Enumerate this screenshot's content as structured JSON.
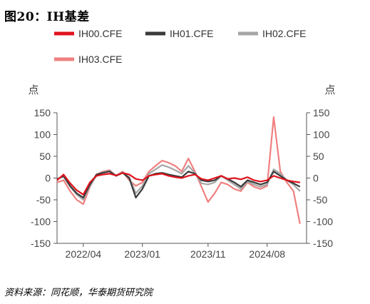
{
  "header": {
    "title": "图20：IH基差"
  },
  "footer": {
    "source": "资料来源：同花顺，华泰期货研究院"
  },
  "chart_data": {
    "type": "line",
    "title": "IH基差",
    "y_unit_left": "点",
    "y_unit_right": "点",
    "ylim": [
      -150,
      150
    ],
    "y_ticks": [
      150,
      100,
      50,
      0,
      -50,
      -100,
      -150
    ],
    "xlim": [
      "2021-12",
      "2025-02"
    ],
    "x_ticks": [
      "2022/04",
      "2023/01",
      "2023/11",
      "2024/08"
    ],
    "legend_position": "top",
    "grid": false,
    "series": [
      {
        "name": "IH00.CFE",
        "color": "#e0131d",
        "width": 2.2,
        "points": [
          [
            "2021-12",
            -5
          ],
          [
            "2022-01",
            8
          ],
          [
            "2022-02",
            -12
          ],
          [
            "2022-03",
            -28
          ],
          [
            "2022-04",
            -38
          ],
          [
            "2022-05",
            -10
          ],
          [
            "2022-06",
            5
          ],
          [
            "2022-07",
            8
          ],
          [
            "2022-08",
            10
          ],
          [
            "2022-09",
            6
          ],
          [
            "2022-10",
            12
          ],
          [
            "2022-11",
            8
          ],
          [
            "2022-12",
            -2
          ],
          [
            "2023-01",
            -5
          ],
          [
            "2023-02",
            5
          ],
          [
            "2023-03",
            8
          ],
          [
            "2023-04",
            10
          ],
          [
            "2023-05",
            5
          ],
          [
            "2023-06",
            2
          ],
          [
            "2023-07",
            0
          ],
          [
            "2023-08",
            5
          ],
          [
            "2023-09",
            8
          ],
          [
            "2023-10",
            -2
          ],
          [
            "2023-11",
            -5
          ],
          [
            "2023-12",
            0
          ],
          [
            "2024-01",
            5
          ],
          [
            "2024-02",
            -2
          ],
          [
            "2024-03",
            0
          ],
          [
            "2024-04",
            -3
          ],
          [
            "2024-05",
            2
          ],
          [
            "2024-06",
            -5
          ],
          [
            "2024-07",
            -8
          ],
          [
            "2024-08",
            -5
          ],
          [
            "2024-09",
            5
          ],
          [
            "2024-10",
            0
          ],
          [
            "2024-11",
            -5
          ],
          [
            "2024-12",
            -8
          ],
          [
            "2025-01",
            -10
          ]
        ]
      },
      {
        "name": "IH01.CFE",
        "color": "#3a3a3a",
        "width": 2.2,
        "points": [
          [
            "2021-12",
            -3
          ],
          [
            "2022-01",
            5
          ],
          [
            "2022-02",
            -18
          ],
          [
            "2022-03",
            -35
          ],
          [
            "2022-04",
            -45
          ],
          [
            "2022-05",
            -15
          ],
          [
            "2022-06",
            8
          ],
          [
            "2022-07",
            12
          ],
          [
            "2022-08",
            15
          ],
          [
            "2022-09",
            5
          ],
          [
            "2022-10",
            12
          ],
          [
            "2022-11",
            0
          ],
          [
            "2022-12",
            -45
          ],
          [
            "2023-01",
            -25
          ],
          [
            "2023-02",
            5
          ],
          [
            "2023-03",
            10
          ],
          [
            "2023-04",
            12
          ],
          [
            "2023-05",
            8
          ],
          [
            "2023-06",
            5
          ],
          [
            "2023-07",
            2
          ],
          [
            "2023-08",
            15
          ],
          [
            "2023-09",
            10
          ],
          [
            "2023-10",
            -5
          ],
          [
            "2023-11",
            -8
          ],
          [
            "2023-12",
            -5
          ],
          [
            "2024-01",
            5
          ],
          [
            "2024-02",
            -2
          ],
          [
            "2024-03",
            -10
          ],
          [
            "2024-04",
            -20
          ],
          [
            "2024-05",
            -5
          ],
          [
            "2024-06",
            -10
          ],
          [
            "2024-07",
            -15
          ],
          [
            "2024-08",
            -10
          ],
          [
            "2024-09",
            15
          ],
          [
            "2024-10",
            5
          ],
          [
            "2024-11",
            -5
          ],
          [
            "2024-12",
            -12
          ],
          [
            "2025-01",
            -20
          ]
        ]
      },
      {
        "name": "IH02.CFE",
        "color": "#a6a6a6",
        "width": 2.2,
        "points": [
          [
            "2021-12",
            -2
          ],
          [
            "2022-01",
            3
          ],
          [
            "2022-02",
            -20
          ],
          [
            "2022-03",
            -38
          ],
          [
            "2022-04",
            -50
          ],
          [
            "2022-05",
            -18
          ],
          [
            "2022-06",
            5
          ],
          [
            "2022-07",
            14
          ],
          [
            "2022-08",
            16
          ],
          [
            "2022-09",
            6
          ],
          [
            "2022-10",
            14
          ],
          [
            "2022-11",
            2
          ],
          [
            "2022-12",
            -35
          ],
          [
            "2023-01",
            -18
          ],
          [
            "2023-02",
            10
          ],
          [
            "2023-03",
            20
          ],
          [
            "2023-04",
            30
          ],
          [
            "2023-05",
            25
          ],
          [
            "2023-06",
            18
          ],
          [
            "2023-07",
            10
          ],
          [
            "2023-08",
            28
          ],
          [
            "2023-09",
            12
          ],
          [
            "2023-10",
            -12
          ],
          [
            "2023-11",
            -15
          ],
          [
            "2023-12",
            -10
          ],
          [
            "2024-01",
            5
          ],
          [
            "2024-02",
            -5
          ],
          [
            "2024-03",
            -15
          ],
          [
            "2024-04",
            -25
          ],
          [
            "2024-05",
            -8
          ],
          [
            "2024-06",
            -15
          ],
          [
            "2024-07",
            -20
          ],
          [
            "2024-08",
            -15
          ],
          [
            "2024-09",
            20
          ],
          [
            "2024-10",
            10
          ],
          [
            "2024-11",
            -5
          ],
          [
            "2024-12",
            -15
          ],
          [
            "2025-01",
            -30
          ]
        ]
      },
      {
        "name": "IH03.CFE",
        "color": "#f08080",
        "width": 2.2,
        "points": [
          [
            "2021-12",
            -10
          ],
          [
            "2022-01",
            -5
          ],
          [
            "2022-02",
            -30
          ],
          [
            "2022-03",
            -50
          ],
          [
            "2022-04",
            -60
          ],
          [
            "2022-05",
            -20
          ],
          [
            "2022-06",
            8
          ],
          [
            "2022-07",
            15
          ],
          [
            "2022-08",
            18
          ],
          [
            "2022-09",
            5
          ],
          [
            "2022-10",
            15
          ],
          [
            "2022-11",
            -5
          ],
          [
            "2022-12",
            -18
          ],
          [
            "2023-01",
            -10
          ],
          [
            "2023-02",
            15
          ],
          [
            "2023-03",
            28
          ],
          [
            "2023-04",
            40
          ],
          [
            "2023-05",
            35
          ],
          [
            "2023-06",
            28
          ],
          [
            "2023-07",
            15
          ],
          [
            "2023-08",
            45
          ],
          [
            "2023-09",
            15
          ],
          [
            "2023-10",
            -20
          ],
          [
            "2023-11",
            -55
          ],
          [
            "2023-12",
            -35
          ],
          [
            "2024-01",
            -10
          ],
          [
            "2024-02",
            -15
          ],
          [
            "2024-03",
            -25
          ],
          [
            "2024-04",
            -30
          ],
          [
            "2024-05",
            -10
          ],
          [
            "2024-06",
            -20
          ],
          [
            "2024-07",
            -25
          ],
          [
            "2024-08",
            -18
          ],
          [
            "2024-09",
            140
          ],
          [
            "2024-10",
            15
          ],
          [
            "2024-11",
            -10
          ],
          [
            "2024-12",
            -30
          ],
          [
            "2025-01",
            -105
          ]
        ]
      }
    ]
  }
}
